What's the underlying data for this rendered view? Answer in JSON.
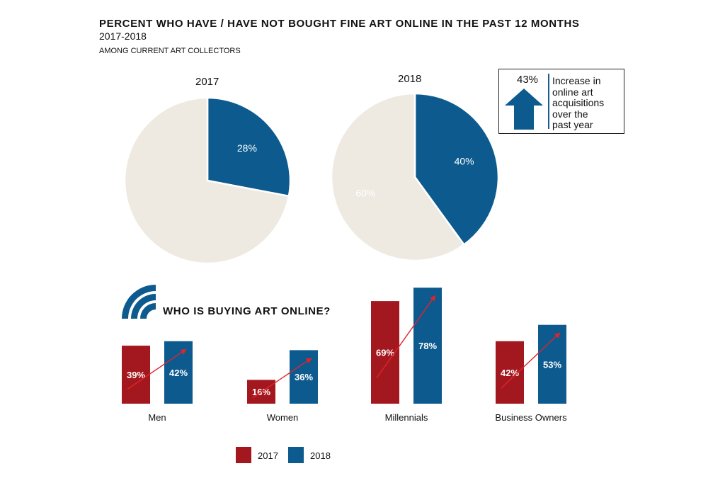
{
  "title": "PERCENT WHO HAVE / HAVE NOT BOUGHT FINE ART ONLINE IN THE PAST 12 MONTHS",
  "subtitle": "2017-2018",
  "note": "AMONG CURRENT ART COLLECTORS",
  "colors": {
    "pie_blue": "#0d5a8e",
    "pie_beige": "#eeeae2",
    "bar_2017": "#a3181e",
    "bar_2018": "#0d5a8e",
    "trend_arrow": "#e0242a"
  },
  "callout": {
    "value": "43%",
    "text": [
      "Increase in",
      "online art",
      "acquisitions",
      "over the",
      "past year"
    ],
    "icon": "arrow-up-icon"
  },
  "section_title": "WHO IS BUYING ART ONLINE?",
  "section_icon": "wifi-signal-icon",
  "legend": [
    "2017",
    "2018"
  ],
  "chart_data": [
    {
      "type": "pie",
      "title": "2017",
      "slices": [
        {
          "label": "28%",
          "value": 28,
          "color": "#0d5a8e"
        },
        {
          "label": "",
          "value": 72,
          "color": "#eeeae2"
        }
      ]
    },
    {
      "type": "pie",
      "title": "2018",
      "slices": [
        {
          "label": "40%",
          "value": 40,
          "color": "#0d5a8e"
        },
        {
          "label": "60%",
          "value": 60,
          "color": "#eeeae2"
        }
      ]
    },
    {
      "type": "bar",
      "title": "WHO IS BUYING ART ONLINE?",
      "categories": [
        "Men",
        "Women",
        "Millennials",
        "Business Owners"
      ],
      "series": [
        {
          "name": "2017",
          "values": [
            39,
            16,
            69,
            42
          ],
          "labels": [
            "39%",
            "16%",
            "69%",
            "42%"
          ]
        },
        {
          "name": "2018",
          "values": [
            42,
            36,
            78,
            53
          ],
          "labels": [
            "42%",
            "36%",
            "78%",
            "53%"
          ]
        }
      ],
      "legend": "bottom"
    }
  ]
}
